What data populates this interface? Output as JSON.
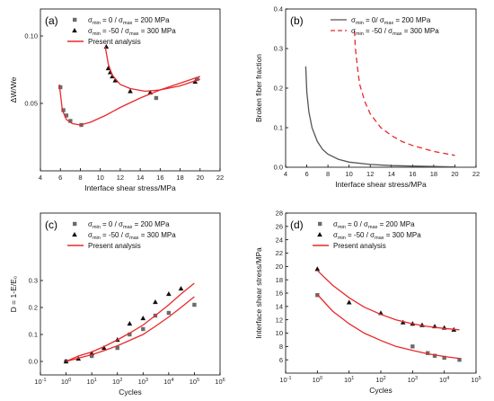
{
  "colors": {
    "red": "#e8282b",
    "square": "#6b6b6b",
    "triangle": "#111111",
    "gray_line": "#555555"
  },
  "chart_data": [
    {
      "type": "scatter",
      "panel_label": "(a)",
      "xlabel": "Interface shear stress/MPa",
      "ylabel": "ΔW/We",
      "xlim": [
        4,
        22
      ],
      "ylim": [
        0.0,
        0.12
      ],
      "xticks": [
        "4",
        "6",
        "8",
        "10",
        "12",
        "14",
        "16",
        "18",
        "20",
        "22"
      ],
      "yticks": [
        "0.05",
        "0.10"
      ],
      "ytick_values": [
        0.05,
        0.1
      ],
      "legend": {
        "position": "top-left",
        "entries": [
          {
            "marker": "square",
            "parts": [
              "σ",
              "min",
              " = 0 / σ",
              "max",
              " = 200 MPa"
            ]
          },
          {
            "marker": "triangle",
            "parts": [
              "σ",
              "min",
              " = -50 / σ",
              "max",
              " = 300 MPa"
            ]
          },
          {
            "marker": "line",
            "parts": [
              "Present analysis"
            ]
          }
        ]
      },
      "series": [
        {
          "marker": "square",
          "x": [
            6.0,
            6.3,
            6.6,
            7.0,
            8.1,
            15.6,
            19.7
          ],
          "y": [
            0.062,
            0.045,
            0.041,
            0.037,
            0.034,
            0.054,
            0.068
          ]
        },
        {
          "marker": "triangle",
          "x": [
            10.6,
            10.8,
            11.0,
            11.2,
            11.5,
            13.0,
            15.0,
            19.5
          ],
          "y": [
            0.092,
            0.076,
            0.073,
            0.07,
            0.067,
            0.059,
            0.058,
            0.066
          ]
        },
        {
          "marker": "line",
          "x": [
            5.9,
            6.2,
            6.6,
            7.2,
            8.0,
            9.0,
            10.5,
            12.0,
            14.0,
            16.0,
            18.0,
            20.0
          ],
          "y": [
            0.064,
            0.045,
            0.038,
            0.035,
            0.034,
            0.036,
            0.041,
            0.047,
            0.054,
            0.06,
            0.065,
            0.07
          ]
        },
        {
          "marker": "line",
          "x": [
            10.5,
            10.8,
            11.2,
            12.0,
            13.0,
            14.5,
            16.0,
            18.0,
            20.0
          ],
          "y": [
            0.092,
            0.079,
            0.071,
            0.064,
            0.061,
            0.059,
            0.06,
            0.063,
            0.068
          ]
        }
      ]
    },
    {
      "type": "line",
      "panel_label": "(b)",
      "xlabel": "Interface shear stress/MPa",
      "ylabel": "Broken fiber fraction",
      "xlim": [
        4,
        22
      ],
      "ylim": [
        0.0,
        0.4
      ],
      "xticks": [
        "4",
        "6",
        "8",
        "10",
        "12",
        "14",
        "16",
        "18",
        "20",
        "22"
      ],
      "yticks": [
        "0.0",
        "0.1",
        "0.2",
        "0.3",
        "0.4"
      ],
      "ytick_values": [
        0.0,
        0.1,
        0.2,
        0.3,
        0.4
      ],
      "legend": {
        "position": "top-right",
        "entries": [
          {
            "marker": "solid",
            "parts": [
              "σ",
              "min",
              " = 0/ σ",
              "max",
              " = 200 MPa"
            ]
          },
          {
            "marker": "dashed",
            "parts": [
              "σ",
              "min",
              " = -50 / σ",
              "max",
              " = 300 MPa"
            ]
          }
        ]
      },
      "series": [
        {
          "marker": "solid",
          "x": [
            5.9,
            6.0,
            6.2,
            6.5,
            7.0,
            7.5,
            8.0,
            9.0,
            10.0,
            12.0,
            14.0,
            16.0,
            18.0,
            20.0
          ],
          "y": [
            0.255,
            0.19,
            0.14,
            0.1,
            0.065,
            0.045,
            0.033,
            0.02,
            0.013,
            0.007,
            0.004,
            0.003,
            0.002,
            0.001
          ]
        },
        {
          "marker": "dashed",
          "x": [
            10.5,
            10.6,
            10.8,
            11.0,
            11.5,
            12.0,
            13.0,
            14.0,
            15.0,
            16.0,
            18.0,
            20.0
          ],
          "y": [
            0.345,
            0.3,
            0.25,
            0.21,
            0.165,
            0.135,
            0.1,
            0.08,
            0.065,
            0.055,
            0.04,
            0.03
          ]
        }
      ]
    },
    {
      "type": "scatter",
      "panel_label": "(c)",
      "xlabel": "Cycles",
      "ylabel": "D = 1-E/E₀",
      "xscale": "log",
      "xlim": [
        0.1,
        1000000
      ],
      "ylim": [
        -0.05,
        0.55
      ],
      "xticks": [
        {
          "base": "10",
          "exp": "-1",
          "value": 0.1
        },
        {
          "base": "10",
          "exp": "0",
          "value": 1
        },
        {
          "base": "10",
          "exp": "1",
          "value": 10
        },
        {
          "base": "10",
          "exp": "2",
          "value": 100
        },
        {
          "base": "10",
          "exp": "3",
          "value": 1000
        },
        {
          "base": "10",
          "exp": "4",
          "value": 10000
        },
        {
          "base": "10",
          "exp": "5",
          "value": 100000
        },
        {
          "base": "10",
          "exp": "6",
          "value": 1000000
        }
      ],
      "yticks": [
        "0.0",
        "0.1",
        "0.2",
        "0.3"
      ],
      "ytick_values": [
        0.0,
        0.1,
        0.2,
        0.3
      ],
      "legend": {
        "position": "top-left",
        "entries": [
          {
            "marker": "square",
            "parts": [
              "σ",
              "min",
              " = 0 / σ",
              "max",
              " = 200 MPa"
            ]
          },
          {
            "marker": "triangle",
            "parts": [
              "σ",
              "min",
              " = -50 / σ",
              "max",
              " = 300 MPa"
            ]
          },
          {
            "marker": "line",
            "parts": [
              "Present analysis"
            ]
          }
        ]
      },
      "series": [
        {
          "marker": "square",
          "x": [
            1,
            10,
            100,
            300,
            1000,
            3000,
            10000,
            100000
          ],
          "y": [
            0.0,
            0.02,
            0.05,
            0.1,
            0.12,
            0.17,
            0.18,
            0.21
          ]
        },
        {
          "marker": "triangle",
          "x": [
            1,
            3,
            10,
            30,
            100,
            300,
            1000,
            3000,
            10000,
            30000
          ],
          "y": [
            0.0,
            0.01,
            0.03,
            0.05,
            0.08,
            0.14,
            0.16,
            0.22,
            0.25,
            0.27
          ]
        },
        {
          "marker": "line",
          "x": [
            1,
            3,
            10,
            30,
            100,
            300,
            1000,
            3000,
            10000,
            30000,
            100000
          ],
          "y": [
            0.0,
            0.012,
            0.025,
            0.04,
            0.058,
            0.078,
            0.1,
            0.13,
            0.165,
            0.2,
            0.24
          ]
        },
        {
          "marker": "line",
          "x": [
            1,
            3,
            10,
            30,
            100,
            300,
            1000,
            3000,
            10000,
            30000,
            100000
          ],
          "y": [
            0.0,
            0.02,
            0.035,
            0.055,
            0.08,
            0.105,
            0.135,
            0.17,
            0.21,
            0.25,
            0.29
          ]
        }
      ]
    },
    {
      "type": "scatter",
      "panel_label": "(d)",
      "xlabel": "Cycles",
      "ylabel": "Interface shear stress/MPa",
      "xscale": "log",
      "xlim": [
        0.1,
        100000
      ],
      "ylim": [
        4,
        28
      ],
      "xticks": [
        {
          "base": "10",
          "exp": "-1",
          "value": 0.1
        },
        {
          "base": "10",
          "exp": "0",
          "value": 1
        },
        {
          "base": "10",
          "exp": "1",
          "value": 10
        },
        {
          "base": "10",
          "exp": "2",
          "value": 100
        },
        {
          "base": "10",
          "exp": "3",
          "value": 1000
        },
        {
          "base": "10",
          "exp": "4",
          "value": 10000
        },
        {
          "base": "10",
          "exp": "5",
          "value": 100000
        }
      ],
      "yticks": [
        "6",
        "8",
        "10",
        "12",
        "14",
        "16",
        "18",
        "20",
        "22",
        "24",
        "26",
        "28"
      ],
      "ytick_values": [
        6,
        8,
        10,
        12,
        14,
        16,
        18,
        20,
        22,
        24,
        26,
        28
      ],
      "legend": {
        "position": "top-left",
        "entries": [
          {
            "marker": "square",
            "parts": [
              "σ",
              "min",
              " = 0 / σ",
              "max",
              " = 200 MPa"
            ]
          },
          {
            "marker": "triangle",
            "parts": [
              "σ",
              "min",
              " = -50 / σ",
              "max",
              " = 300 MPa"
            ]
          },
          {
            "marker": "line",
            "parts": [
              "Present analysis"
            ]
          }
        ]
      },
      "series": [
        {
          "marker": "square",
          "x": [
            1,
            1000,
            3000,
            5000,
            10000,
            30000
          ],
          "y": [
            15.7,
            8.0,
            7.0,
            6.6,
            6.3,
            6.0
          ]
        },
        {
          "marker": "triangle",
          "x": [
            1,
            10,
            100,
            500,
            1000,
            2000,
            5000,
            10000,
            20000
          ],
          "y": [
            19.6,
            14.6,
            13.0,
            11.6,
            11.4,
            11.2,
            11.0,
            10.8,
            10.5
          ]
        },
        {
          "marker": "line",
          "x": [
            1,
            3,
            10,
            30,
            100,
            300,
            1000,
            3000,
            10000,
            30000
          ],
          "y": [
            15.8,
            13.3,
            11.4,
            10.0,
            8.9,
            8.0,
            7.4,
            6.9,
            6.5,
            6.2
          ]
        },
        {
          "marker": "line",
          "x": [
            1,
            3,
            10,
            30,
            100,
            300,
            1000,
            3000,
            10000,
            30000
          ],
          "y": [
            19.4,
            17.2,
            15.3,
            13.9,
            12.8,
            12.0,
            11.4,
            11.0,
            10.7,
            10.5
          ]
        }
      ]
    }
  ]
}
